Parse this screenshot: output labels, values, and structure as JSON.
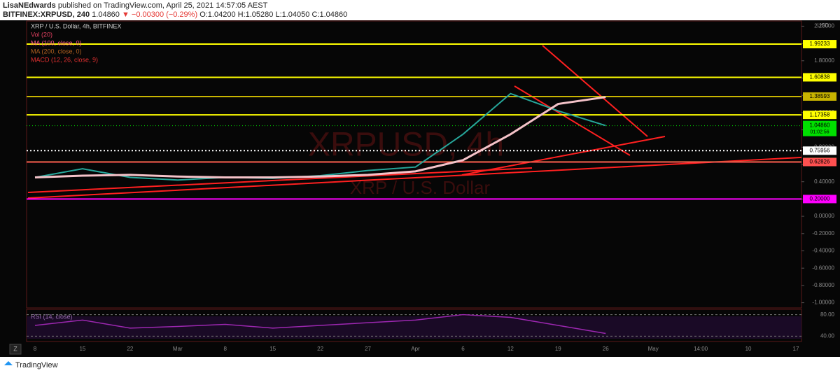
{
  "header": {
    "publisher": "LisaNEdwards",
    "published": "published on TradingView.com, April 25, 2021 14:57:05 AEST",
    "symbol": "BITFINEX:XRPUSD, 240",
    "price": "1.04860",
    "change": "▼ −0.00300 (−0.29%)",
    "ohlc": [
      "O:1.04200",
      "H:1.05280",
      "L:1.04050",
      "C:1.04860"
    ]
  },
  "legend": [
    "XRP / U.S. Dollar, 4h, BITFINEX",
    "Vol (20)",
    "MA (100, close, 0)",
    "MA (200, close, 0)",
    "MACD (12, 26, close, 9)"
  ],
  "watermark": [
    "XRPUSD, 4h",
    "XRP / U.S. Dollar"
  ],
  "chart_data": {
    "type": "line",
    "categories": [
      "8",
      "15",
      "22",
      "Mar",
      "8",
      "15",
      "22",
      "27",
      "Apr",
      "6",
      "12",
      "19",
      "26",
      "May",
      "14:00",
      "10",
      "17"
    ],
    "series": [
      {
        "name": "XRP / U.S. Dollar",
        "color": "#26a69a",
        "values": [
          0.45,
          0.55,
          0.45,
          0.42,
          0.45,
          0.44,
          0.47,
          0.53,
          0.57,
          0.95,
          1.42,
          1.22,
          1.05,
          null,
          null,
          null,
          null
        ]
      },
      {
        "name": "MA (100, close, 0)",
        "color": "#f4c2c8",
        "values": [
          0.45,
          0.47,
          0.48,
          0.46,
          0.45,
          0.45,
          0.46,
          0.48,
          0.52,
          0.65,
          0.95,
          1.3,
          1.38,
          null,
          null,
          null,
          null
        ]
      }
    ],
    "ylim": [
      -1.06,
      2.26
    ],
    "yticks": [
      {
        "value": -1,
        "label": "-1.00000"
      },
      {
        "value": -0.8,
        "label": "-0.80000"
      },
      {
        "value": -0.6,
        "label": "-0.60000"
      },
      {
        "value": -0.4,
        "label": "-0.40000"
      },
      {
        "value": -0.2,
        "label": "-0.20000"
      },
      {
        "value": 0,
        "label": "0.00000"
      },
      {
        "value": 0.2,
        "label": "0.20000"
      },
      {
        "value": 0.4,
        "label": "0.40000"
      },
      {
        "value": 0.6,
        "label": "0.60000"
      },
      {
        "value": 0.8,
        "label": "0.80000"
      },
      {
        "value": 1,
        "label": "1.00000"
      },
      {
        "value": 1.2,
        "label": "1.20000"
      },
      {
        "value": 1.4,
        "label": "1.40000"
      },
      {
        "value": 1.6,
        "label": "1.60000"
      },
      {
        "value": 1.8,
        "label": "1.80000"
      },
      {
        "value": 2,
        "label": "2.00000"
      },
      {
        "value": 2.2,
        "label": "2.20000"
      }
    ],
    "levels": [
      {
        "value": 1.99233,
        "color": "#ffff00"
      },
      {
        "value": 1.60838,
        "color": "#ffff00"
      },
      {
        "value": 1.38593,
        "color": "#c8b400"
      },
      {
        "value": 1.17358,
        "color": "#ffff00"
      },
      {
        "value": 0.75956,
        "color": "#ffffff"
      },
      {
        "value": 0.62928,
        "color": "#00ff00"
      },
      {
        "value": 0.62826,
        "color": "#ff5050"
      },
      {
        "value": 0.2,
        "label": "0.20000",
        "color": "#ff00ff"
      }
    ],
    "current": {
      "value": 1.0486,
      "label": "1.04860",
      "timer": "01:02:56",
      "color": "#00e000"
    },
    "unit": "USD"
  },
  "rsi": {
    "label": "RSI (14, close)",
    "color": "#9c27b0",
    "values": [
      60,
      70,
      55,
      58,
      62,
      55,
      60,
      65,
      70,
      80,
      75,
      60,
      45,
      null,
      null,
      null,
      null
    ],
    "ylim": [
      30,
      90
    ],
    "yticks": [
      {
        "value": 80,
        "label": "80.00"
      },
      {
        "value": 40,
        "label": "40.00"
      }
    ]
  },
  "ui": {
    "zoom": "Z",
    "brand": "TradingView"
  }
}
